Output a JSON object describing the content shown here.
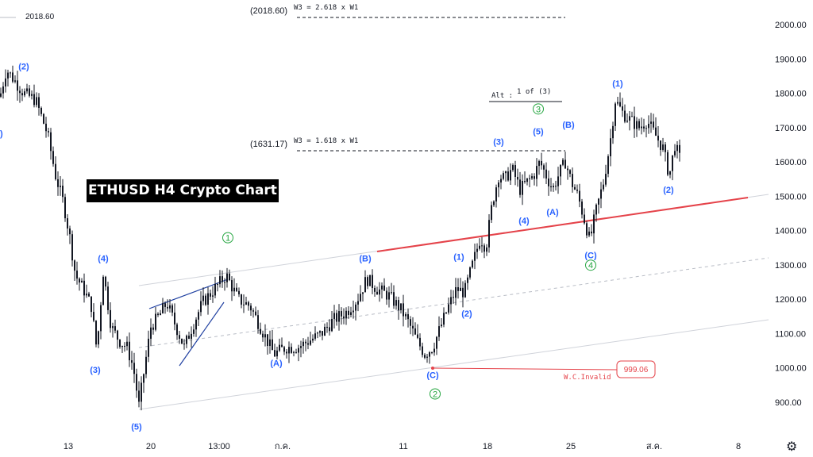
{
  "title": "ETHUSD H4 Crypto Chart",
  "last_price_label": "2018.60",
  "settings_icon": "gear-icon",
  "colors": {
    "up": "#131722",
    "support_line": "#e5434a",
    "channel": "#c9ccd3",
    "triangle": "#1e3fa0",
    "wave_blue": "#2962ff",
    "wave_green": "#26a641"
  },
  "chart_data": {
    "type": "candlestick",
    "ylim": [
      850,
      2050
    ],
    "y_ticks": [
      "900.00",
      "1000.00",
      "1100.00",
      "1200.00",
      "1300.00",
      "1400.00",
      "1500.00",
      "1600.00",
      "1700.00",
      "1800.00",
      "1900.00",
      "2000.00"
    ],
    "x_ticks": [
      "13",
      "20",
      "13:00",
      "ก.ค.",
      "11",
      "18",
      "25",
      "ส.ค.",
      "8"
    ],
    "price_path": [
      [
        0,
        1790
      ],
      [
        8,
        1870
      ],
      [
        30,
        1800
      ],
      [
        45,
        1780
      ],
      [
        60,
        1680
      ],
      [
        70,
        1560
      ],
      [
        80,
        1480
      ],
      [
        88,
        1380
      ],
      [
        95,
        1270
      ],
      [
        105,
        1230
      ],
      [
        115,
        1180
      ],
      [
        122,
        1050
      ],
      [
        130,
        1280
      ],
      [
        140,
        1120
      ],
      [
        150,
        1080
      ],
      [
        160,
        1060
      ],
      [
        168,
        1000
      ],
      [
        175,
        890
      ],
      [
        182,
        1000
      ],
      [
        190,
        1120
      ],
      [
        200,
        1150
      ],
      [
        210,
        1190
      ],
      [
        220,
        1130
      ],
      [
        232,
        1060
      ],
      [
        242,
        1120
      ],
      [
        255,
        1190
      ],
      [
        270,
        1230
      ],
      [
        285,
        1270
      ],
      [
        300,
        1200
      ],
      [
        315,
        1180
      ],
      [
        330,
        1110
      ],
      [
        345,
        1040
      ],
      [
        360,
        1060
      ],
      [
        375,
        1060
      ],
      [
        390,
        1080
      ],
      [
        405,
        1100
      ],
      [
        420,
        1140
      ],
      [
        435,
        1160
      ],
      [
        450,
        1200
      ],
      [
        462,
        1260
      ],
      [
        475,
        1230
      ],
      [
        490,
        1210
      ],
      [
        505,
        1170
      ],
      [
        515,
        1130
      ],
      [
        525,
        1080
      ],
      [
        535,
        1040
      ],
      [
        545,
        1060
      ],
      [
        555,
        1120
      ],
      [
        565,
        1180
      ],
      [
        575,
        1230
      ],
      [
        585,
        1220
      ],
      [
        595,
        1300
      ],
      [
        605,
        1380
      ],
      [
        612,
        1350
      ],
      [
        620,
        1480
      ],
      [
        628,
        1560
      ],
      [
        636,
        1550
      ],
      [
        645,
        1580
      ],
      [
        655,
        1520
      ],
      [
        663,
        1540
      ],
      [
        672,
        1560
      ],
      [
        680,
        1600
      ],
      [
        688,
        1560
      ],
      [
        696,
        1520
      ],
      [
        705,
        1570
      ],
      [
        712,
        1600
      ],
      [
        720,
        1540
      ],
      [
        728,
        1500
      ],
      [
        735,
        1440
      ],
      [
        743,
        1370
      ],
      [
        750,
        1450
      ],
      [
        760,
        1540
      ],
      [
        768,
        1650
      ],
      [
        775,
        1780
      ],
      [
        785,
        1740
      ],
      [
        795,
        1720
      ],
      [
        805,
        1700
      ],
      [
        815,
        1720
      ],
      [
        825,
        1680
      ],
      [
        835,
        1640
      ],
      [
        843,
        1560
      ],
      [
        850,
        1650
      ],
      [
        856,
        1610
      ]
    ],
    "price_lines": [
      {
        "label": "(2018.60)",
        "note": "W3 = 2.618 x W1",
        "value": 2018.6
      },
      {
        "label": "(1631.17)",
        "note": "W3 = 1.618 x W1",
        "value": 1631.17
      }
    ],
    "invalidation": {
      "label": "W.C.Invalid",
      "value_label": "999.06",
      "value": 999.06
    },
    "alt_note": {
      "prefix": "Alt :",
      "text": "1 of (3)"
    },
    "wave_labels_blue": [
      {
        "t": "(2)",
        "x": 30,
        "y": 1870
      },
      {
        "t": "(4)",
        "x": 130,
        "y": 1310
      },
      {
        "t": "(3)",
        "x": 120,
        "y": 985
      },
      {
        "t": "(5)",
        "x": 172,
        "y": 820
      },
      {
        "t": "(A)",
        "x": 348,
        "y": 1005
      },
      {
        "t": "(B)",
        "x": 460,
        "y": 1310
      },
      {
        "t": "(C)",
        "x": 545,
        "y": 970
      },
      {
        "t": "(1)",
        "x": 578,
        "y": 1315
      },
      {
        "t": "(2)",
        "x": 588,
        "y": 1150
      },
      {
        "t": "(3)",
        "x": 628,
        "y": 1650
      },
      {
        "t": "(4)",
        "x": 660,
        "y": 1420
      },
      {
        "t": "(5)",
        "x": 678,
        "y": 1680
      },
      {
        "t": "(A)",
        "x": 696,
        "y": 1445
      },
      {
        "t": "(B)",
        "x": 716,
        "y": 1700
      },
      {
        "t": "(C)",
        "x": 744,
        "y": 1320
      },
      {
        "t": "(1)",
        "x": 778,
        "y": 1820
      },
      {
        "t": "(2)",
        "x": 842,
        "y": 1510
      }
    ],
    "wave_labels_green": [
      {
        "t": "1",
        "x": 287,
        "y": 1370
      },
      {
        "t": "2",
        "x": 548,
        "y": 915
      },
      {
        "t": "3",
        "x": 678,
        "y": 1745
      },
      {
        "t": "4",
        "x": 744,
        "y": 1290
      }
    ]
  }
}
